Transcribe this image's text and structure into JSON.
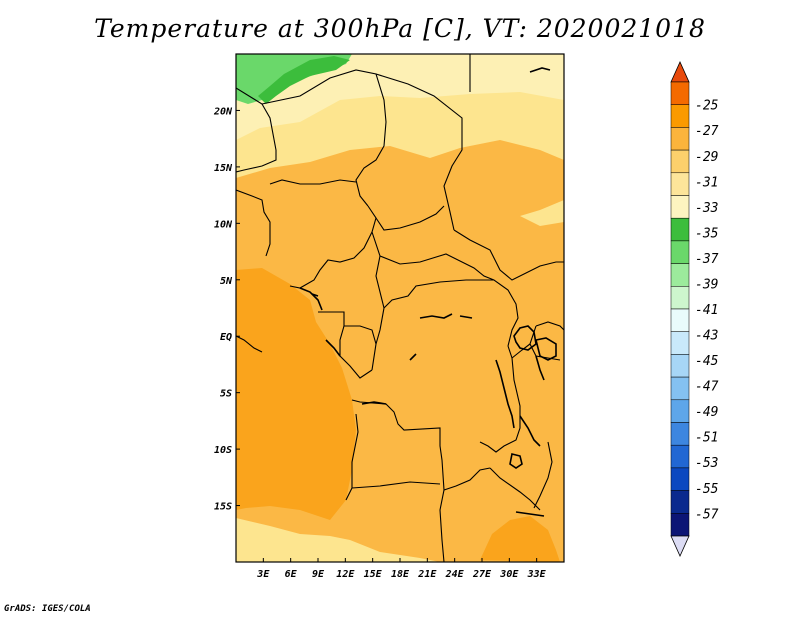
{
  "title": "Temperature at 300hPa [C], VT: 2020021018",
  "credit": "GrADS: IGES/COLA",
  "map": {
    "lon_range": [
      0,
      36
    ],
    "lat_range": [
      -20,
      25
    ],
    "x_ticks": [
      "3E",
      "6E",
      "9E",
      "12E",
      "15E",
      "18E",
      "21E",
      "24E",
      "27E",
      "30E",
      "33E"
    ],
    "y_ticks": [
      "20N",
      "15N",
      "10N",
      "5N",
      "EQ",
      "5S",
      "10S",
      "15S"
    ]
  },
  "colorbar": {
    "labels": [
      "-25",
      "-27",
      "-29",
      "-31",
      "-33",
      "-35",
      "-37",
      "-39",
      "-41",
      "-43",
      "-45",
      "-47",
      "-49",
      "-51",
      "-53",
      "-55",
      "-57"
    ],
    "colors": [
      "#e84a0c",
      "#f46a00",
      "#fa9a00",
      "#fbb43c",
      "#fcd06c",
      "#fde59a",
      "#fdf4c0",
      "#3cbd3c",
      "#6ad86a",
      "#9ceb9c",
      "#cdf6cd",
      "#e9fbfb",
      "#c9e9fa",
      "#a7d6f6",
      "#84c1f1",
      "#5ea6ea",
      "#3d86e0",
      "#2167d3",
      "#0b48c0",
      "#0a2a8e",
      "#0c1575",
      "#dcdcf4"
    ]
  }
}
